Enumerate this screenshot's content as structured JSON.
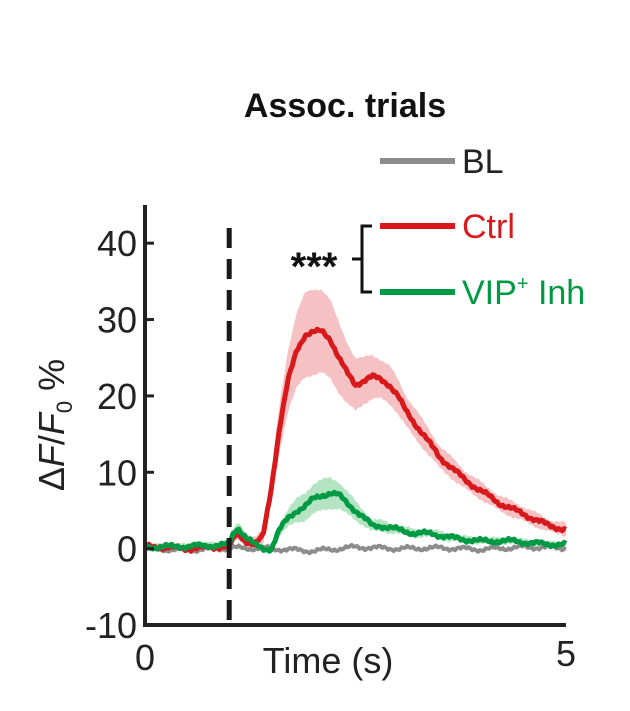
{
  "chart_data": {
    "type": "line",
    "title": "Assoc. trials",
    "xlabel": "Time (s)",
    "ylabel": {
      "delta": "Δ",
      "F": "F",
      "slash": "/",
      "F0": "F",
      "sub": "0",
      "unit": "%"
    },
    "xlim": [
      0,
      5
    ],
    "ylim": [
      -10,
      45
    ],
    "x_ticks": [
      "0",
      "5"
    ],
    "y_ticks": [
      {
        "value": -10,
        "label": "-10"
      },
      {
        "value": 0,
        "label": "0"
      },
      {
        "value": 10,
        "label": "10"
      },
      {
        "value": 20,
        "label": "20"
      },
      {
        "value": 30,
        "label": "30"
      },
      {
        "value": 40,
        "label": "40"
      }
    ],
    "stimulus_onset": 1.0,
    "significance": "***",
    "series": [
      {
        "name": "BL",
        "label": "BL",
        "color": "#8c8c8c",
        "x": [
          0,
          0.5,
          1.0,
          1.5,
          2.0,
          2.5,
          3.0,
          3.5,
          4.0,
          4.5,
          5.0
        ],
        "y": [
          0,
          -0.2,
          0.1,
          0,
          -0.3,
          0.2,
          0,
          0.1,
          -0.1,
          0.2,
          0.1
        ],
        "err": []
      },
      {
        "name": "Ctrl",
        "label": "Ctrl",
        "color": "#d7191c",
        "shade": "#f4b6b8",
        "x": [
          0,
          0.5,
          1.0,
          1.05,
          1.1,
          1.2,
          1.3,
          1.4,
          1.5,
          1.6,
          1.7,
          1.8,
          1.9,
          2.0,
          2.1,
          2.2,
          2.3,
          2.4,
          2.5,
          2.6,
          2.7,
          2.8,
          2.9,
          3.0,
          3.1,
          3.2,
          3.3,
          3.4,
          3.5,
          3.6,
          3.7,
          3.8,
          4.0,
          4.2,
          4.4,
          4.6,
          4.8,
          5.0
        ],
        "y": [
          0.3,
          0,
          0.3,
          1.2,
          2.0,
          1.0,
          0.5,
          1.5,
          8,
          16,
          22,
          26,
          28,
          28.3,
          28.5,
          27.5,
          25,
          23,
          21.5,
          22,
          22.5,
          22.2,
          21.5,
          20,
          18,
          16.5,
          15,
          13.5,
          12,
          11,
          10,
          9,
          7.5,
          6,
          5,
          4,
          3,
          2.5
        ],
        "err": [
          0.5,
          0.5,
          0.5,
          0.6,
          0.8,
          0.8,
          0.8,
          1.2,
          2,
          3,
          4,
          5,
          5.5,
          5.5,
          5.5,
          5.2,
          4.5,
          4,
          3.5,
          3,
          2.8,
          2.6,
          2.5,
          2.2,
          2,
          2,
          1.8,
          1.6,
          1.5,
          1.4,
          1.3,
          1.2,
          1.1,
          1,
          1,
          0.9,
          0.8,
          0.8
        ]
      },
      {
        "name": "VIP+ Inh",
        "label": "VIP",
        "sup": "+",
        "label_suffix": " Inh",
        "color": "#009a44",
        "shade": "#a8dfb8",
        "x": [
          0,
          0.5,
          1.0,
          1.05,
          1.1,
          1.2,
          1.3,
          1.4,
          1.5,
          1.6,
          1.7,
          1.8,
          1.9,
          2.0,
          2.1,
          2.2,
          2.3,
          2.4,
          2.5,
          2.6,
          2.7,
          2.8,
          3.0,
          3.2,
          3.4,
          3.6,
          3.8,
          4.0,
          4.2,
          4.4,
          4.6,
          4.8,
          5.0
        ],
        "y": [
          0.2,
          0.3,
          0.5,
          2.0,
          2.8,
          1.5,
          0.5,
          0,
          0,
          2.5,
          4,
          5,
          5.5,
          6.5,
          7,
          7.3,
          7,
          6,
          5,
          4,
          3,
          3,
          2.5,
          2,
          2,
          1.5,
          1.2,
          1,
          1,
          1,
          0.7,
          0.6,
          0.5
        ],
        "err": [
          0.3,
          0.3,
          0.4,
          0.5,
          0.6,
          0.5,
          0.4,
          0.4,
          0.5,
          0.8,
          1.2,
          1.5,
          1.8,
          2,
          2,
          2,
          1.8,
          1.5,
          1.2,
          1,
          0.8,
          0.7,
          0.6,
          0.5,
          0.5,
          0.5,
          0.4,
          0.4,
          0.4,
          0.4,
          0.3,
          0.3,
          0.3
        ]
      }
    ]
  }
}
